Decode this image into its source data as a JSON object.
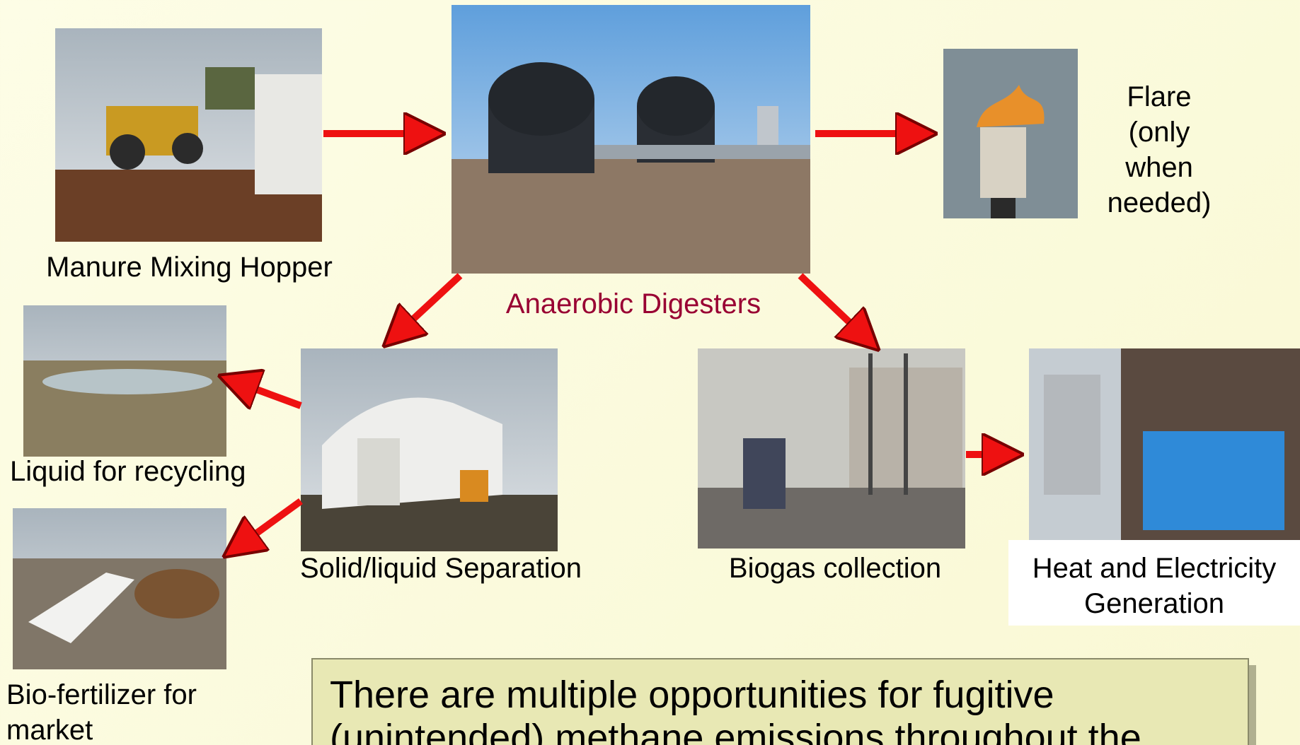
{
  "nodes": [
    {
      "label": "Manure Mixing Hopper"
    },
    {
      "label": "Anaerobic Digesters"
    },
    {
      "label": "Flare (only when needed)"
    },
    {
      "label": "Liquid for recycling"
    },
    {
      "label": "Solid/liquid Separation"
    },
    {
      "label": "Bio-fertilizer for market"
    },
    {
      "label": "Biogas collection"
    },
    {
      "label": "Heat and Electricity Generation"
    }
  ],
  "callout": {
    "text": "There are multiple opportunities for fugitive (unintended) methane emissions throughout the"
  }
}
